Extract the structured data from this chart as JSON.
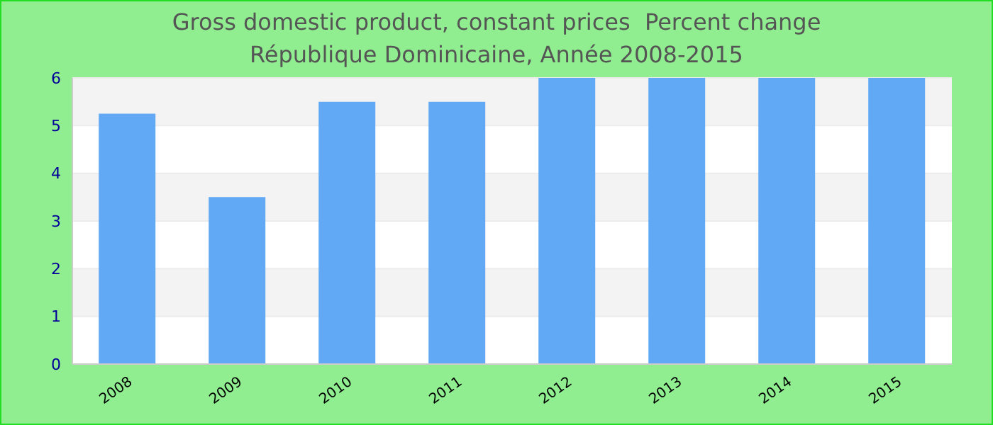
{
  "chart_data": {
    "type": "bar",
    "title": "Gross domestic product, constant prices  Percent change",
    "subtitle": "République Dominicaine, Année 2008-2015",
    "categories": [
      "2008",
      "2009",
      "2010",
      "2011",
      "2012",
      "2013",
      "2014",
      "2015"
    ],
    "values": [
      5.25,
      3.5,
      5.5,
      5.5,
      6,
      6,
      6,
      6
    ],
    "color": "#61a9f5",
    "ylim": [
      0,
      6
    ],
    "yticks": [
      0,
      1,
      2,
      3,
      4,
      5,
      6
    ],
    "grid": "y",
    "legend": false
  }
}
